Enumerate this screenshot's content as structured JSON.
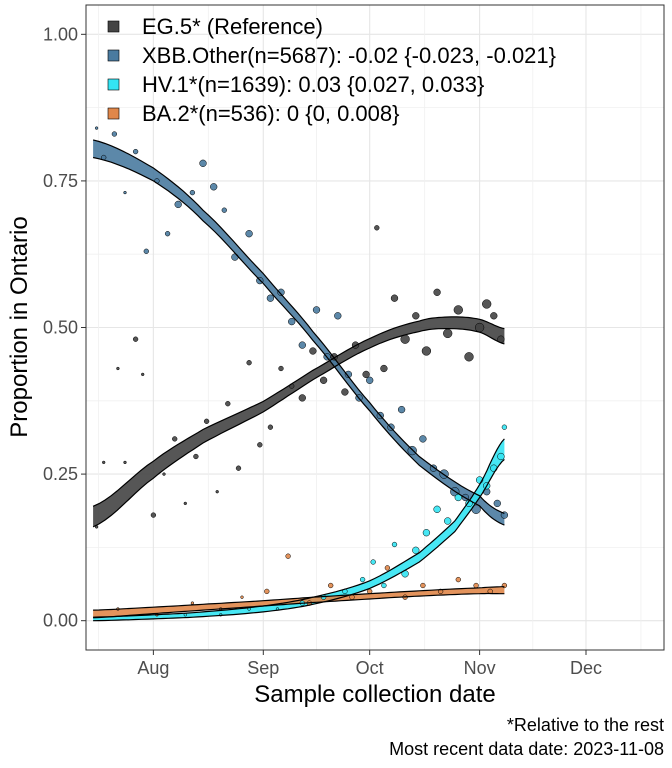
{
  "chart_data": {
    "type": "scatter",
    "xlabel": "Sample collection date",
    "ylabel": "Proportion in Ontario",
    "x_range": [
      "2023-07-13",
      "2023-12-23"
    ],
    "x_ticks": [
      {
        "date": "2023-08-01",
        "label": "Aug"
      },
      {
        "date": "2023-09-01",
        "label": "Sep"
      },
      {
        "date": "2023-10-01",
        "label": "Oct"
      },
      {
        "date": "2023-11-01",
        "label": "Nov"
      },
      {
        "date": "2023-12-01",
        "label": "Dec"
      }
    ],
    "ylim": [
      -0.05,
      1.05
    ],
    "y_ticks": [
      {
        "value": 0,
        "label": "0.00"
      },
      {
        "value": 0.25,
        "label": "0.25"
      },
      {
        "value": 0.5,
        "label": "0.50"
      },
      {
        "value": 0.75,
        "label": "0.75"
      },
      {
        "value": 1,
        "label": "1.00"
      }
    ],
    "grid": true,
    "legend_position": "top-left",
    "series": [
      {
        "name": "EG.5* (Reference)",
        "color": "#444444",
        "fit_ci": [
          [
            "2023-07-15",
            0.16,
            0.195
          ],
          [
            "2023-08-01",
            0.243,
            0.272
          ],
          [
            "2023-08-15",
            0.303,
            0.326
          ],
          [
            "2023-09-01",
            0.356,
            0.374
          ],
          [
            "2023-09-15",
            0.411,
            0.427
          ],
          [
            "2023-10-01",
            0.465,
            0.481
          ],
          [
            "2023-10-15",
            0.493,
            0.511
          ],
          [
            "2023-10-24",
            0.498,
            0.518
          ],
          [
            "2023-11-01",
            0.492,
            0.514
          ],
          [
            "2023-11-08",
            0.472,
            0.498
          ]
        ],
        "points": [
          [
            "2023-07-16",
            0.16,
            1
          ],
          [
            "2023-07-18",
            0.27,
            1
          ],
          [
            "2023-07-22",
            0.43,
            1
          ],
          [
            "2023-07-24",
            0.27,
            1
          ],
          [
            "2023-07-27",
            0.48,
            2
          ],
          [
            "2023-07-29",
            0.42,
            1
          ],
          [
            "2023-08-01",
            0.18,
            2
          ],
          [
            "2023-08-04",
            0.25,
            1
          ],
          [
            "2023-08-07",
            0.31,
            2
          ],
          [
            "2023-08-10",
            0.2,
            1
          ],
          [
            "2023-08-13",
            0.28,
            2
          ],
          [
            "2023-08-16",
            0.34,
            2
          ],
          [
            "2023-08-19",
            0.22,
            1
          ],
          [
            "2023-08-22",
            0.37,
            2
          ],
          [
            "2023-08-25",
            0.26,
            2
          ],
          [
            "2023-08-28",
            0.44,
            2
          ],
          [
            "2023-08-31",
            0.3,
            2
          ],
          [
            "2023-09-03",
            0.33,
            2
          ],
          [
            "2023-09-06",
            0.43,
            2
          ],
          [
            "2023-09-09",
            0.4,
            2
          ],
          [
            "2023-09-12",
            0.38,
            3
          ],
          [
            "2023-09-15",
            0.46,
            3
          ],
          [
            "2023-09-18",
            0.41,
            3
          ],
          [
            "2023-09-21",
            0.45,
            3
          ],
          [
            "2023-09-24",
            0.39,
            3
          ],
          [
            "2023-09-27",
            0.47,
            3
          ],
          [
            "2023-09-30",
            0.42,
            3
          ],
          [
            "2023-10-03",
            0.67,
            2
          ],
          [
            "2023-10-05",
            0.43,
            3
          ],
          [
            "2023-10-08",
            0.55,
            3
          ],
          [
            "2023-10-11",
            0.48,
            4
          ],
          [
            "2023-10-14",
            0.52,
            3
          ],
          [
            "2023-10-17",
            0.46,
            4
          ],
          [
            "2023-10-20",
            0.56,
            3
          ],
          [
            "2023-10-23",
            0.49,
            4
          ],
          [
            "2023-10-26",
            0.53,
            4
          ],
          [
            "2023-10-29",
            0.45,
            4
          ],
          [
            "2023-11-01",
            0.5,
            4
          ],
          [
            "2023-11-03",
            0.54,
            4
          ],
          [
            "2023-11-05",
            0.52,
            3
          ],
          [
            "2023-11-07",
            0.48,
            3
          ]
        ]
      },
      {
        "name": "XBB.Other(n=5687): -0.02 {-0.023, -0.021}",
        "color": "#4a7ba0",
        "fit_ci": [
          [
            "2023-07-15",
            0.79,
            0.82
          ],
          [
            "2023-08-01",
            0.75,
            0.772
          ],
          [
            "2023-08-15",
            0.682,
            0.7
          ],
          [
            "2023-09-01",
            0.575,
            0.592
          ],
          [
            "2023-09-15",
            0.478,
            0.493
          ],
          [
            "2023-10-01",
            0.358,
            0.372
          ],
          [
            "2023-10-15",
            0.265,
            0.28
          ],
          [
            "2023-11-01",
            0.196,
            0.213
          ],
          [
            "2023-11-08",
            0.163,
            0.183
          ]
        ],
        "points": [
          [
            "2023-07-16",
            0.84,
            1
          ],
          [
            "2023-07-18",
            0.79,
            2
          ],
          [
            "2023-07-21",
            0.83,
            2
          ],
          [
            "2023-07-24",
            0.73,
            1
          ],
          [
            "2023-07-27",
            0.8,
            2
          ],
          [
            "2023-07-30",
            0.63,
            2
          ],
          [
            "2023-08-02",
            0.75,
            2
          ],
          [
            "2023-08-05",
            0.66,
            2
          ],
          [
            "2023-08-08",
            0.71,
            3
          ],
          [
            "2023-08-12",
            0.73,
            2
          ],
          [
            "2023-08-15",
            0.78,
            3
          ],
          [
            "2023-08-18",
            0.74,
            3
          ],
          [
            "2023-08-21",
            0.7,
            2
          ],
          [
            "2023-08-24",
            0.62,
            3
          ],
          [
            "2023-08-28",
            0.66,
            3
          ],
          [
            "2023-08-31",
            0.58,
            3
          ],
          [
            "2023-09-03",
            0.55,
            3
          ],
          [
            "2023-09-06",
            0.56,
            3
          ],
          [
            "2023-09-09",
            0.51,
            3
          ],
          [
            "2023-09-12",
            0.47,
            3
          ],
          [
            "2023-09-16",
            0.53,
            3
          ],
          [
            "2023-09-19",
            0.45,
            3
          ],
          [
            "2023-09-22",
            0.52,
            3
          ],
          [
            "2023-09-25",
            0.42,
            3
          ],
          [
            "2023-09-28",
            0.38,
            3
          ],
          [
            "2023-10-01",
            0.41,
            3
          ],
          [
            "2023-10-04",
            0.35,
            3
          ],
          [
            "2023-10-07",
            0.33,
            3
          ],
          [
            "2023-10-10",
            0.36,
            3
          ],
          [
            "2023-10-13",
            0.29,
            4
          ],
          [
            "2023-10-16",
            0.31,
            3
          ],
          [
            "2023-10-19",
            0.26,
            3
          ],
          [
            "2023-10-22",
            0.25,
            4
          ],
          [
            "2023-10-25",
            0.22,
            4
          ],
          [
            "2023-10-28",
            0.21,
            3
          ],
          [
            "2023-10-31",
            0.19,
            4
          ],
          [
            "2023-11-03",
            0.22,
            3
          ],
          [
            "2023-11-06",
            0.2,
            3
          ],
          [
            "2023-11-08",
            0.18,
            3
          ]
        ]
      },
      {
        "name": "HV.1*(n=1639): 0.03 {0.027, 0.033}",
        "color": "#33e4f3",
        "fit_ci": [
          [
            "2023-07-15",
            0.0,
            0.006
          ],
          [
            "2023-08-01",
            0.003,
            0.01
          ],
          [
            "2023-08-15",
            0.007,
            0.015
          ],
          [
            "2023-09-01",
            0.015,
            0.025
          ],
          [
            "2023-09-15",
            0.028,
            0.04
          ],
          [
            "2023-10-01",
            0.055,
            0.068
          ],
          [
            "2023-10-15",
            0.1,
            0.116
          ],
          [
            "2023-10-25",
            0.152,
            0.17
          ],
          [
            "2023-11-01",
            0.21,
            0.232
          ],
          [
            "2023-11-08",
            0.275,
            0.31
          ]
        ],
        "points": [
          [
            "2023-08-10",
            0.01,
            1
          ],
          [
            "2023-08-20",
            0.01,
            1
          ],
          [
            "2023-08-28",
            0.02,
            1
          ],
          [
            "2023-09-05",
            0.02,
            1
          ],
          [
            "2023-09-12",
            0.03,
            2
          ],
          [
            "2023-09-18",
            0.04,
            2
          ],
          [
            "2023-09-24",
            0.05,
            2
          ],
          [
            "2023-09-29",
            0.07,
            2
          ],
          [
            "2023-10-02",
            0.1,
            2
          ],
          [
            "2023-10-05",
            0.06,
            2
          ],
          [
            "2023-10-08",
            0.13,
            2
          ],
          [
            "2023-10-11",
            0.08,
            3
          ],
          [
            "2023-10-14",
            0.12,
            3
          ],
          [
            "2023-10-17",
            0.15,
            3
          ],
          [
            "2023-10-20",
            0.19,
            3
          ],
          [
            "2023-10-23",
            0.17,
            3
          ],
          [
            "2023-10-26",
            0.21,
            3
          ],
          [
            "2023-10-29",
            0.2,
            3
          ],
          [
            "2023-11-01",
            0.24,
            3
          ],
          [
            "2023-11-03",
            0.23,
            3
          ],
          [
            "2023-11-05",
            0.26,
            3
          ],
          [
            "2023-11-07",
            0.28,
            3
          ],
          [
            "2023-11-08",
            0.33,
            2
          ]
        ]
      },
      {
        "name": "BA.2*(n=536): 0 {0, 0.008}",
        "color": "#e0874a",
        "fit_ci": [
          [
            "2023-07-15",
            0.005,
            0.018
          ],
          [
            "2023-08-01",
            0.012,
            0.023
          ],
          [
            "2023-08-15",
            0.018,
            0.028
          ],
          [
            "2023-09-01",
            0.025,
            0.034
          ],
          [
            "2023-09-15",
            0.031,
            0.04
          ],
          [
            "2023-10-01",
            0.037,
            0.046
          ],
          [
            "2023-10-15",
            0.042,
            0.051
          ],
          [
            "2023-11-01",
            0.046,
            0.056
          ],
          [
            "2023-11-08",
            0.046,
            0.058
          ]
        ],
        "points": [
          [
            "2023-07-22",
            0.02,
            1
          ],
          [
            "2023-08-02",
            0.01,
            1
          ],
          [
            "2023-08-12",
            0.03,
            1
          ],
          [
            "2023-08-20",
            0.02,
            1
          ],
          [
            "2023-08-26",
            0.04,
            1
          ],
          [
            "2023-09-02",
            0.05,
            2
          ],
          [
            "2023-09-08",
            0.11,
            2
          ],
          [
            "2023-09-14",
            0.03,
            2
          ],
          [
            "2023-09-20",
            0.06,
            2
          ],
          [
            "2023-09-26",
            0.04,
            2
          ],
          [
            "2023-10-01",
            0.05,
            2
          ],
          [
            "2023-10-06",
            0.09,
            2
          ],
          [
            "2023-10-11",
            0.04,
            2
          ],
          [
            "2023-10-16",
            0.06,
            2
          ],
          [
            "2023-10-21",
            0.05,
            2
          ],
          [
            "2023-10-26",
            0.07,
            2
          ],
          [
            "2023-10-31",
            0.06,
            2
          ],
          [
            "2023-11-04",
            0.05,
            2
          ],
          [
            "2023-11-08",
            0.06,
            2
          ]
        ]
      }
    ],
    "caption_lines": [
      "*Relative to the rest",
      "Most recent data date: 2023-11-08"
    ]
  }
}
